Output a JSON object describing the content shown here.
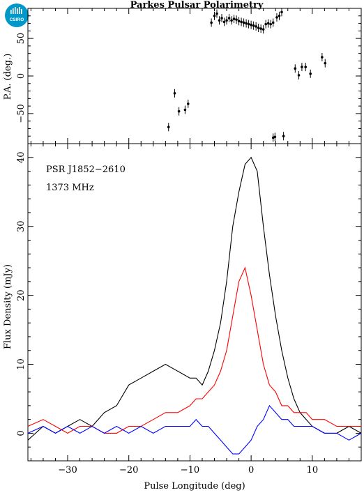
{
  "title": "Parkes Pulsar Polarimetry",
  "logo": {
    "text": "CSIRO",
    "color": "#0098C8"
  },
  "chart_data": [
    {
      "type": "scatter",
      "ylabel": "P.A. (deg.)",
      "xlim": [
        -36.5,
        18
      ],
      "ylim": [
        -90,
        90
      ],
      "yticks": [
        -50,
        0,
        50
      ],
      "points": [
        [
          -13.5,
          -68
        ],
        [
          -12.5,
          -23
        ],
        [
          -11.8,
          -47
        ],
        [
          -10.8,
          -45
        ],
        [
          -10.3,
          -37
        ],
        [
          -6.5,
          71
        ],
        [
          -6.0,
          80
        ],
        [
          -5.6,
          83
        ],
        [
          -5.2,
          74
        ],
        [
          -4.8,
          77
        ],
        [
          -4.4,
          72
        ],
        [
          -4.0,
          74
        ],
        [
          -3.6,
          77
        ],
        [
          -3.2,
          74
        ],
        [
          -2.8,
          76
        ],
        [
          -2.4,
          75
        ],
        [
          -2.0,
          73
        ],
        [
          -1.6,
          72
        ],
        [
          -1.2,
          71
        ],
        [
          -0.8,
          70
        ],
        [
          -0.4,
          69
        ],
        [
          0.0,
          68
        ],
        [
          0.4,
          67
        ],
        [
          0.8,
          66
        ],
        [
          1.2,
          64
        ],
        [
          1.6,
          63
        ],
        [
          2.0,
          62
        ],
        [
          2.4,
          69
        ],
        [
          2.8,
          70
        ],
        [
          3.2,
          69
        ],
        [
          3.6,
          71
        ],
        [
          4.2,
          78
        ],
        [
          4.6,
          80
        ],
        [
          5.0,
          85
        ],
        [
          3.6,
          -82
        ],
        [
          3.9,
          -81
        ],
        [
          5.3,
          -80
        ],
        [
          7.2,
          10
        ],
        [
          7.8,
          1
        ],
        [
          8.3,
          12
        ],
        [
          8.9,
          12
        ],
        [
          9.7,
          3
        ],
        [
          11.6,
          25
        ],
        [
          12.1,
          17
        ]
      ]
    },
    {
      "type": "line",
      "xlabel": "Pulse Longitude (deg)",
      "ylabel": "Flux Density (mJy)",
      "xlim": [
        -36.5,
        18
      ],
      "ylim": [
        -4,
        42
      ],
      "xticks": [
        -30,
        -20,
        -10,
        0,
        10
      ],
      "yticks": [
        0,
        10,
        20,
        30,
        40
      ],
      "annotations": [
        "PSR J1852−2610",
        "1373 MHz"
      ],
      "series": [
        {
          "color": "#000000",
          "x": [
            -36.5,
            -34,
            -32,
            -30,
            -28,
            -26,
            -24,
            -22,
            -20,
            -18,
            -16,
            -14,
            -12,
            -10,
            -9,
            -8,
            -7,
            -6,
            -5,
            -4,
            -3,
            -2,
            -1,
            0,
            1,
            2,
            3,
            4,
            5,
            6,
            7,
            8,
            9,
            10,
            12,
            14,
            16,
            18
          ],
          "y": [
            -1,
            1,
            0,
            1,
            2,
            1,
            3,
            4,
            7,
            8,
            9,
            10,
            9,
            8,
            8,
            7,
            9,
            12,
            16,
            22,
            30,
            35,
            39,
            40,
            38,
            30,
            23,
            17,
            12,
            8,
            5,
            3,
            2,
            1,
            0,
            0,
            1,
            0
          ]
        },
        {
          "color": "#ff0000",
          "x": [
            -36.5,
            -34,
            -32,
            -30,
            -28,
            -26,
            -24,
            -22,
            -20,
            -18,
            -16,
            -14,
            -12,
            -10,
            -9,
            -8,
            -7,
            -6,
            -5,
            -4,
            -3,
            -2,
            -1,
            0,
            1,
            2,
            3,
            4,
            5,
            6,
            7,
            8,
            9,
            10,
            12,
            14,
            16,
            18
          ],
          "y": [
            1,
            2,
            1,
            0,
            1,
            1,
            0,
            0,
            1,
            1,
            2,
            3,
            3,
            4,
            5,
            5,
            6,
            7,
            9,
            12,
            17,
            22,
            24,
            20,
            15,
            10,
            7,
            6,
            4,
            4,
            3,
            3,
            3,
            2,
            2,
            1,
            1,
            1
          ]
        },
        {
          "color": "#0000ff",
          "x": [
            -36.5,
            -34,
            -32,
            -30,
            -28,
            -26,
            -24,
            -22,
            -20,
            -18,
            -16,
            -14,
            -12,
            -10,
            -9,
            -8,
            -7,
            -6,
            -5,
            -4,
            -3,
            -2,
            -1,
            0,
            1,
            2,
            3,
            4,
            5,
            6,
            7,
            8,
            9,
            10,
            12,
            14,
            16,
            18
          ],
          "y": [
            0,
            1,
            0,
            1,
            0,
            1,
            0,
            1,
            0,
            1,
            0,
            1,
            1,
            1,
            2,
            1,
            1,
            0,
            -1,
            -2,
            -3,
            -3,
            -2,
            -1,
            1,
            2,
            4,
            3,
            2,
            2,
            1,
            1,
            1,
            1,
            0,
            0,
            -1,
            0
          ]
        }
      ]
    }
  ]
}
